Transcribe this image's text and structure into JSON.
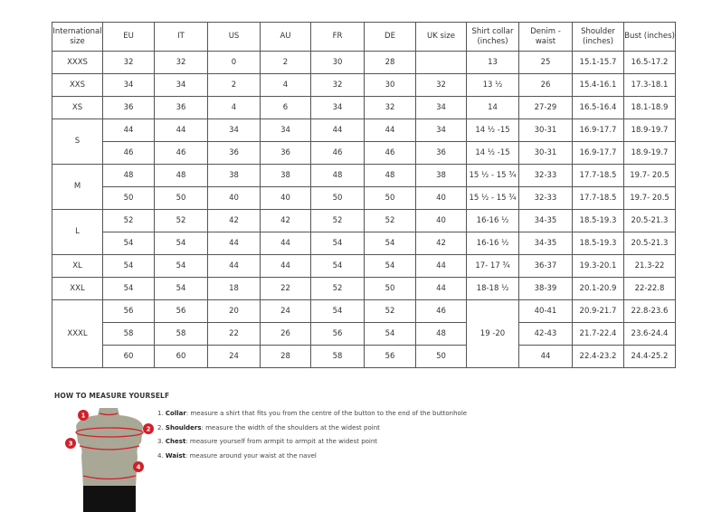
{
  "table": {
    "headers": [
      "International size",
      "EU",
      "IT",
      "US",
      "AU",
      "FR",
      "DE",
      "UK size",
      "Shirt collar (inches)",
      "Denim - waist",
      "Shoulder (inches)",
      "Bust (inches)"
    ],
    "rows": [
      [
        {
          "v": "XXXS"
        },
        "32",
        "32",
        "0",
        "2",
        "30",
        "28",
        "",
        "13",
        "25",
        "15.1-15.7",
        "16.5-17.2"
      ],
      [
        {
          "v": "XXS"
        },
        "34",
        "34",
        "2",
        "4",
        "32",
        "30",
        "32",
        "13 ½",
        "26",
        "15.4-16.1",
        "17.3-18.1"
      ],
      [
        {
          "v": "XS"
        },
        "36",
        "36",
        "4",
        "6",
        "34",
        "32",
        "34",
        "14",
        "27-29",
        "16.5-16.4",
        "18.1-18.9"
      ],
      [
        {
          "v": "S",
          "rowspan": 2
        },
        "44",
        "44",
        "34",
        "34",
        "44",
        "44",
        "34",
        "14 ½ -15",
        "30-31",
        "16.9-17.7",
        "18.9-19.7"
      ],
      [
        "46",
        "46",
        "36",
        "36",
        "46",
        "46",
        "36",
        "14 ½ -15",
        "30-31",
        "16.9-17.7",
        "18.9-19.7"
      ],
      [
        {
          "v": "M",
          "rowspan": 2
        },
        "48",
        "48",
        "38",
        "38",
        "48",
        "48",
        "38",
        "15 ½ - 15 ¾",
        "32-33",
        "17.7-18.5",
        "19.7- 20.5"
      ],
      [
        "50",
        "50",
        "40",
        "40",
        "50",
        "50",
        "40",
        "15 ½ - 15 ¾",
        "32-33",
        "17.7-18.5",
        "19.7- 20.5"
      ],
      [
        {
          "v": "L",
          "rowspan": 2
        },
        "52",
        "52",
        "42",
        "42",
        "52",
        "52",
        "40",
        "16-16 ½",
        "34-35",
        "18.5-19.3",
        "20.5-21.3"
      ],
      [
        "54",
        "54",
        "44",
        "44",
        "54",
        "54",
        "42",
        "16-16 ½",
        "34-35",
        "18.5-19.3",
        "20.5-21.3"
      ],
      [
        {
          "v": "XL"
        },
        "54",
        "54",
        "44",
        "44",
        "54",
        "54",
        "44",
        "17- 17 ¾",
        "36-37",
        "19.3-20.1",
        "21.3-22"
      ],
      [
        {
          "v": "XXL"
        },
        "54",
        "54",
        "18",
        "22",
        "52",
        "50",
        "44",
        "18-18 ½",
        "38-39",
        "20.1-20.9",
        "22-22.8"
      ],
      [
        {
          "v": "XXXL",
          "rowspan": 3
        },
        "56",
        "56",
        "20",
        "24",
        "54",
        "52",
        "46",
        {
          "v": "19 -20",
          "rowspan": 3
        },
        "40-41",
        "20.9-21.7",
        "22.8-23.6"
      ],
      [
        "58",
        "58",
        "22",
        "26",
        "56",
        "54",
        "48",
        "42-43",
        "21.7-22.4",
        "23.6-24.4"
      ],
      [
        "60",
        "60",
        "24",
        "28",
        "58",
        "56",
        "50",
        "44",
        "22.4-23.2",
        "24.4-25.2"
      ]
    ]
  },
  "guide": {
    "title": "HOW TO MEASURE YOURSELF",
    "steps": [
      {
        "num": "1.",
        "term": "Collar",
        "text": ": measure a shirt that fits you from the centre of the button to the end of the buttonhole"
      },
      {
        "num": "2.",
        "term": "Shoulders",
        "text": ": measure the width of the shoulders at the widest point"
      },
      {
        "num": "3.",
        "term": "Chest",
        "text": ": measure yourself from armpit to armpit at the widest point"
      },
      {
        "num": "4.",
        "term": "Waist",
        "text": ": measure around your waist at the navel"
      }
    ],
    "markers": [
      "1",
      "2",
      "3",
      "4"
    ],
    "colors": {
      "marker": "#d0202a",
      "torso": "#a9a795",
      "shorts": "#111111"
    }
  }
}
